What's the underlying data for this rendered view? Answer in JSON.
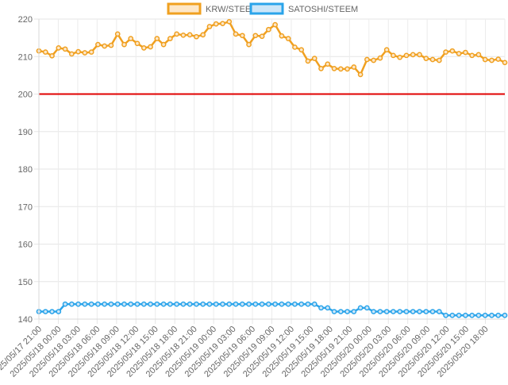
{
  "chart_data": {
    "type": "line",
    "title": "",
    "xlabel": "",
    "ylabel": "",
    "ylim": [
      140,
      220
    ],
    "grid": true,
    "legend_position": "top-center",
    "y_ticks": [
      "140",
      "150",
      "160",
      "170",
      "180",
      "190",
      "200",
      "210",
      "220"
    ],
    "x_tick_labels": [
      "2025/05/17 21:00",
      "2025/05/18 00:00",
      "2025/05/18 03:00",
      "2025/05/18 06:00",
      "2025/05/18 09:00",
      "2025/05/18 12:00",
      "2025/05/18 15:00",
      "2025/05/18 18:00",
      "2025/05/18 21:00",
      "2025/05/19 00:00",
      "2025/05/19 03:00",
      "2025/05/19 06:00",
      "2025/05/19 09:00",
      "2025/05/19 12:00",
      "2025/05/19 15:00",
      "2025/05/19 18:00",
      "2025/05/19 21:00",
      "2025/05/20 00:00",
      "2025/05/20 03:00",
      "2025/05/20 06:00",
      "2025/05/20 09:00",
      "2025/05/20 12:00",
      "2025/05/20 15:00",
      "2025/05/20 18:00"
    ],
    "reference_line": {
      "value": 200,
      "color": "#e00000"
    },
    "series": [
      {
        "name": "KRW/STEEM",
        "color": "#f0a020",
        "fill": "#fde7c8",
        "values": [
          211.5,
          211.2,
          210.2,
          212.3,
          212.0,
          210.7,
          211.3,
          211.0,
          211.2,
          213.2,
          212.8,
          213.0,
          216.0,
          213.2,
          214.8,
          213.5,
          212.3,
          212.6,
          214.8,
          213.2,
          214.8,
          216.0,
          215.7,
          215.8,
          215.3,
          215.8,
          218.0,
          218.7,
          218.8,
          219.3,
          216.0,
          215.6,
          213.2,
          215.6,
          215.4,
          217.2,
          218.5,
          215.5,
          214.8,
          212.5,
          211.8,
          208.8,
          209.5,
          206.8,
          208.0,
          206.8,
          206.7,
          206.7,
          207.2,
          205.2,
          209.2,
          209.0,
          209.6,
          211.8,
          210.3,
          209.8,
          210.3,
          210.5,
          210.5,
          209.5,
          209.2,
          209.0,
          211.2,
          211.5,
          210.8,
          211.1,
          210.3,
          210.5,
          209.2,
          209.0,
          209.3,
          208.4
        ]
      },
      {
        "name": "SATOSHI/STEEM",
        "color": "#2aa4ea",
        "fill": "#cce6f8",
        "values": [
          142,
          142,
          142,
          142,
          144,
          144,
          144,
          144,
          144,
          144,
          144,
          144,
          144,
          144,
          144,
          144,
          144,
          144,
          144,
          144,
          144,
          144,
          144,
          144,
          144,
          144,
          144,
          144,
          144,
          144,
          144,
          144,
          144,
          144,
          144,
          144,
          144,
          144,
          144,
          144,
          144,
          144,
          144,
          143,
          143,
          142,
          142,
          142,
          142,
          143,
          143,
          142,
          142,
          142,
          142,
          142,
          142,
          142,
          142,
          142,
          142,
          142,
          141,
          141,
          141,
          141,
          141,
          141,
          141,
          141,
          141,
          141
        ]
      }
    ]
  }
}
